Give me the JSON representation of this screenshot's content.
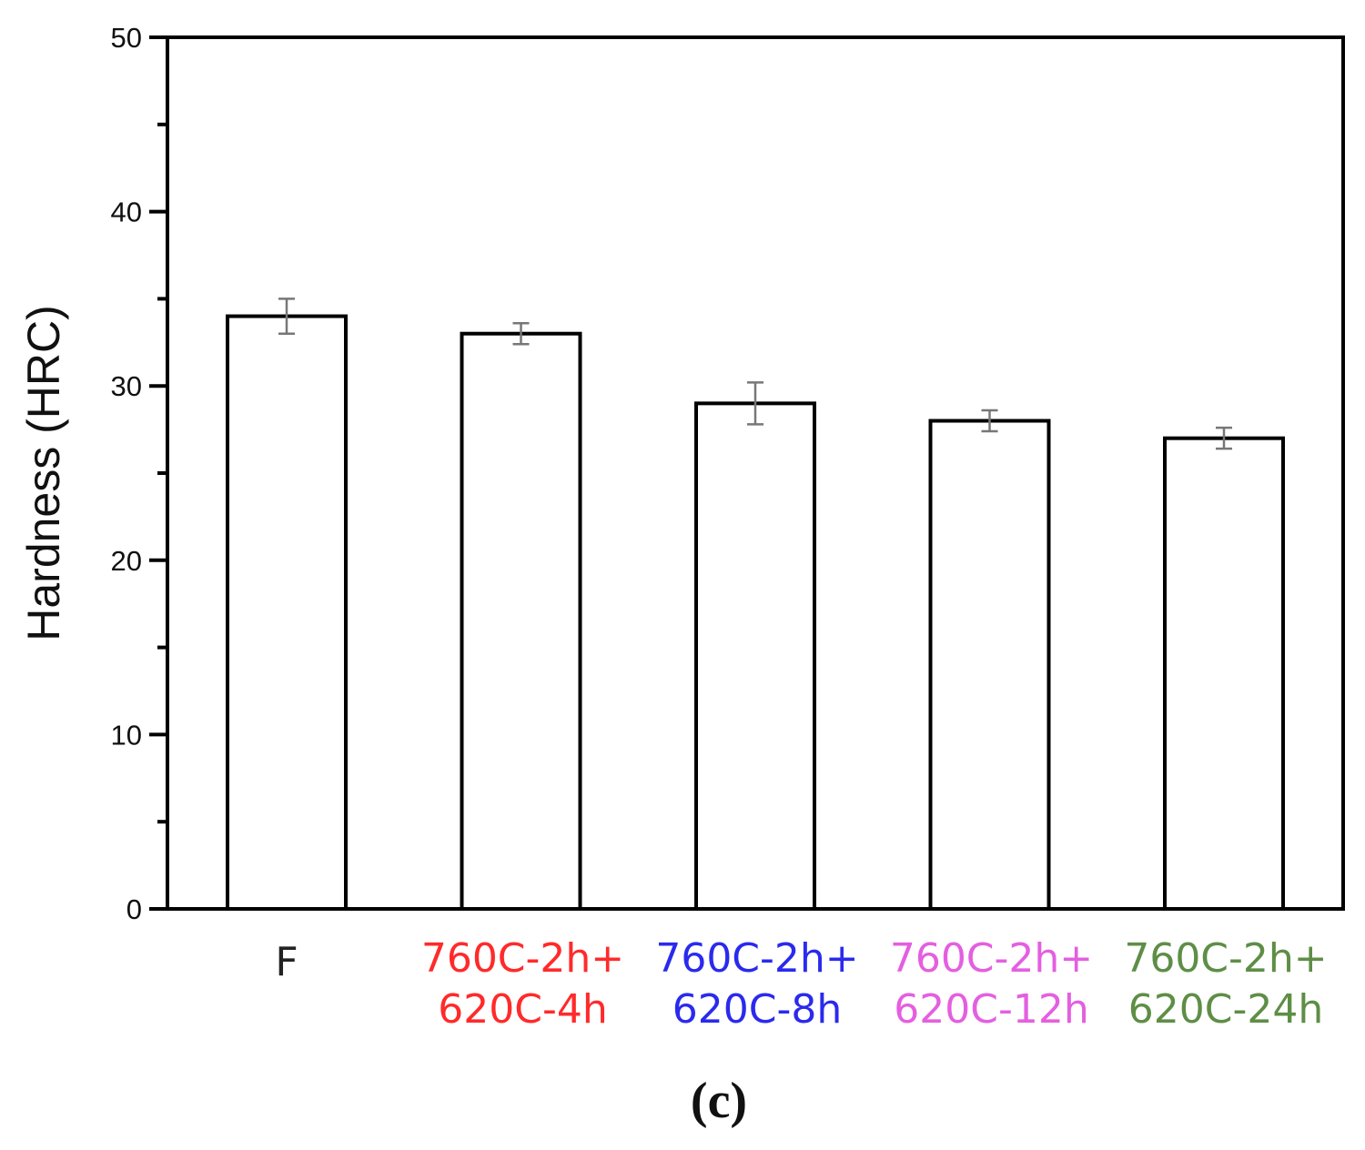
{
  "chart_data": {
    "type": "bar",
    "ylabel": "Hardness (HRC)",
    "xlabel": "",
    "ylim": [
      0,
      50
    ],
    "yticks": [
      0,
      10,
      20,
      30,
      40,
      50
    ],
    "grid": false,
    "panel_label": "(c)",
    "categories": [
      {
        "lines": [
          "F"
        ],
        "color": "#222222"
      },
      {
        "lines": [
          "760C-2h+",
          "620C-4h"
        ],
        "color": "#ff2a2a"
      },
      {
        "lines": [
          "760C-2h+",
          "620C-8h"
        ],
        "color": "#2a2aee"
      },
      {
        "lines": [
          "760C-2h+",
          "620C-12h"
        ],
        "color": "#e45fe0"
      },
      {
        "lines": [
          "760C-2h+",
          "620C-24h"
        ],
        "color": "#5e8e46"
      }
    ],
    "values": [
      34,
      33,
      29,
      28,
      27
    ],
    "errors": [
      1.0,
      0.6,
      1.2,
      0.6,
      0.6
    ],
    "bar_fill": "#ffffff",
    "bar_stroke": "#000000",
    "error_color": "#777777"
  }
}
